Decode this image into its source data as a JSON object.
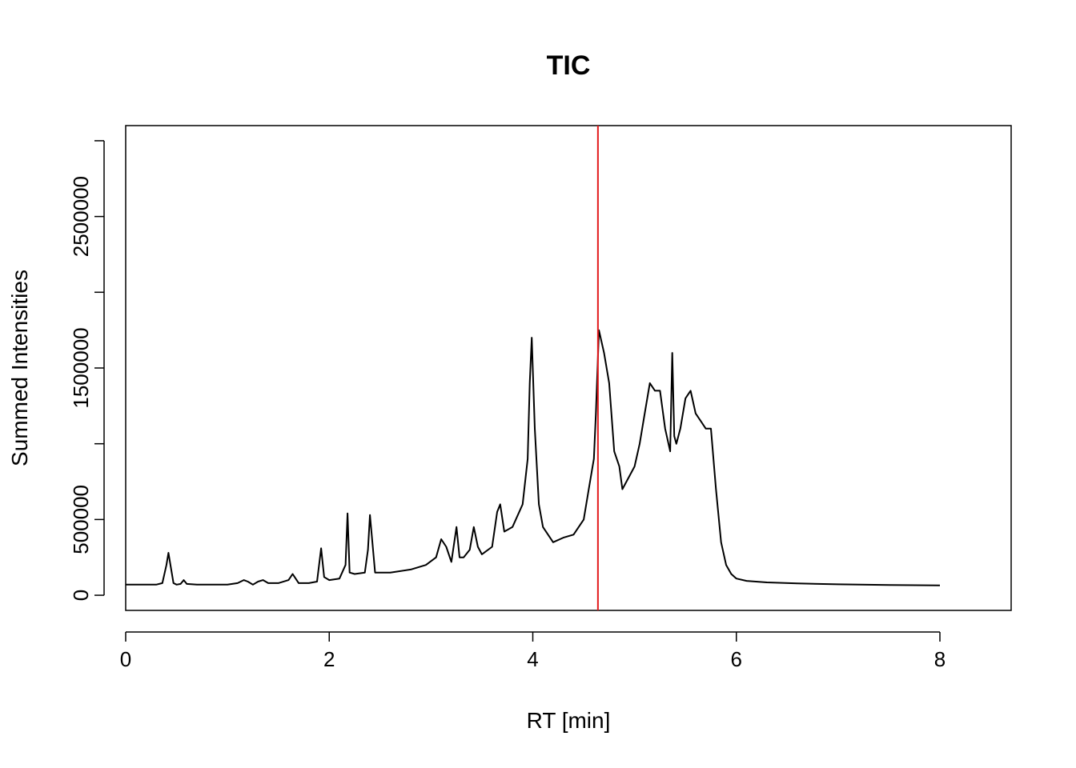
{
  "chart_data": {
    "type": "line",
    "title": "TIC",
    "xlabel": "RT [min]",
    "ylabel": "Summed Intensities",
    "xlim": [
      0,
      8.7
    ],
    "ylim": [
      -100000,
      3100000
    ],
    "x_ticks": [
      0,
      2,
      4,
      6,
      8
    ],
    "x_tick_labels": [
      "0",
      "2",
      "4",
      "6",
      "8"
    ],
    "y_ticks": [
      0,
      500000,
      1000000,
      1500000,
      2000000,
      2500000,
      3000000
    ],
    "y_tick_labels": [
      "0",
      "500000",
      "",
      "1500000",
      "",
      "2500000",
      ""
    ],
    "grid": false,
    "vline": {
      "x": 4.64,
      "color": "#e31a1c"
    },
    "series_color": "#000000",
    "series": [
      {
        "x": [
          0.0,
          0.1,
          0.2,
          0.3,
          0.36,
          0.4,
          0.42,
          0.44,
          0.47,
          0.5,
          0.54,
          0.57,
          0.6,
          0.7,
          0.8,
          0.9,
          1.0,
          1.1,
          1.16,
          1.2,
          1.25,
          1.3,
          1.35,
          1.4,
          1.5,
          1.6,
          1.64,
          1.67,
          1.7,
          1.8,
          1.88,
          1.92,
          1.95,
          2.0,
          2.1,
          2.16,
          2.18,
          2.2,
          2.25,
          2.35,
          2.38,
          2.4,
          2.45,
          2.6,
          2.8,
          2.95,
          3.05,
          3.1,
          3.15,
          3.2,
          3.25,
          3.28,
          3.32,
          3.38,
          3.42,
          3.46,
          3.5,
          3.6,
          3.65,
          3.68,
          3.72,
          3.8,
          3.9,
          3.95,
          3.97,
          3.99,
          4.02,
          4.06,
          4.1,
          4.2,
          4.3,
          4.4,
          4.5,
          4.55,
          4.6,
          4.62,
          4.65,
          4.7,
          4.75,
          4.8,
          4.85,
          4.88,
          4.92,
          5.0,
          5.05,
          5.1,
          5.15,
          5.2,
          5.25,
          5.3,
          5.35,
          5.37,
          5.39,
          5.41,
          5.45,
          5.5,
          5.55,
          5.6,
          5.65,
          5.7,
          5.75,
          5.8,
          5.85,
          5.9,
          5.95,
          6.0,
          6.1,
          6.3,
          6.6,
          7.0,
          7.5,
          8.0
        ],
        "y": [
          70000,
          70000,
          70000,
          70000,
          80000,
          200000,
          280000,
          200000,
          80000,
          70000,
          75000,
          100000,
          75000,
          70000,
          70000,
          70000,
          70000,
          80000,
          100000,
          90000,
          70000,
          90000,
          100000,
          80000,
          80000,
          100000,
          140000,
          110000,
          80000,
          80000,
          90000,
          310000,
          120000,
          100000,
          110000,
          200000,
          540000,
          150000,
          140000,
          150000,
          300000,
          530000,
          150000,
          150000,
          170000,
          200000,
          250000,
          370000,
          320000,
          220000,
          450000,
          250000,
          250000,
          300000,
          450000,
          320000,
          270000,
          320000,
          550000,
          600000,
          420000,
          450000,
          600000,
          900000,
          1400000,
          1700000,
          1100000,
          600000,
          450000,
          350000,
          380000,
          400000,
          500000,
          700000,
          900000,
          1200000,
          1750000,
          1600000,
          1400000,
          950000,
          850000,
          700000,
          750000,
          850000,
          1000000,
          1200000,
          1400000,
          1350000,
          1350000,
          1100000,
          950000,
          1600000,
          1050000,
          1000000,
          1100000,
          1300000,
          1350000,
          1200000,
          1150000,
          1100000,
          1100000,
          700000,
          350000,
          200000,
          140000,
          110000,
          95000,
          85000,
          78000,
          72000,
          68000,
          65000
        ]
      }
    ]
  }
}
